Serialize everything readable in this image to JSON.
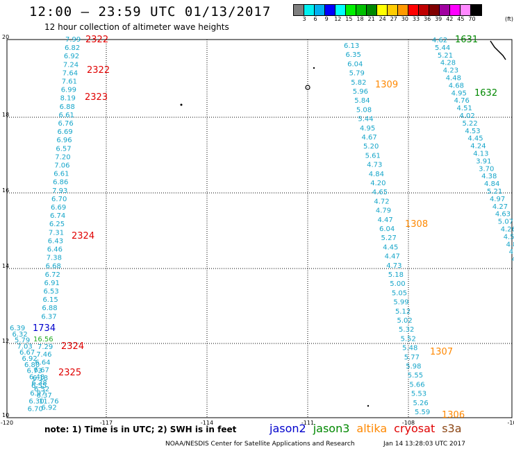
{
  "header": {
    "title": "12:00 — 23:59 UTC 01/13/2017",
    "subtitle": "12 hour collection of altimeter wave heights"
  },
  "colorbar": {
    "colors": [
      "#7f7f7f",
      "#00f0f0",
      "#00b0f0",
      "#0000ff",
      "#00ffff",
      "#00f000",
      "#00c000",
      "#008800",
      "#ffff00",
      "#ffcc00",
      "#ff9900",
      "#ff0000",
      "#c00000",
      "#800000",
      "#a000a0",
      "#ff00ff",
      "#ff88ff",
      "#000000"
    ],
    "labels": [
      "3",
      "6",
      "9",
      "12",
      "15",
      "18",
      "21",
      "24",
      "27",
      "30",
      "33",
      "36",
      "39",
      "42",
      "45",
      "70"
    ],
    "unit": "(ft)"
  },
  "map_axes": {
    "lon_ticks": [
      "-120",
      "-117",
      "-114",
      "-111",
      "-108",
      "-10"
    ],
    "lat_ticks": [
      "20",
      "18",
      "16",
      "14",
      "12",
      "10"
    ],
    "grid": true
  },
  "passes": [
    {
      "id": "2322",
      "mission": "cryosat",
      "color": "#e00000",
      "labels": [
        {
          "text": "2322"
        },
        {
          "text": "2322"
        }
      ]
    },
    {
      "id": "2323",
      "mission": "cryosat",
      "color": "#e00000",
      "labels": [
        {
          "text": "2323"
        }
      ]
    },
    {
      "id": "2324",
      "mission": "cryosat",
      "color": "#e00000",
      "labels": [
        {
          "text": "2324"
        },
        {
          "text": "2324"
        }
      ]
    },
    {
      "id": "2325",
      "mission": "cryosat",
      "color": "#e00000",
      "labels": [
        {
          "text": "2325"
        }
      ]
    },
    {
      "id": "1734",
      "mission": "jason2",
      "color": "#0000cc",
      "labels": [
        {
          "text": "1734"
        }
      ]
    },
    {
      "id": "1309",
      "mission": "altika",
      "color": "#ff8800",
      "labels": [
        {
          "text": "1309"
        }
      ]
    },
    {
      "id": "1308",
      "mission": "altika",
      "color": "#ff8800",
      "labels": [
        {
          "text": "1308"
        }
      ]
    },
    {
      "id": "1307",
      "mission": "altika",
      "color": "#ff8800",
      "labels": [
        {
          "text": "1307"
        }
      ]
    },
    {
      "id": "1306",
      "mission": "altika",
      "color": "#ff8800",
      "labels": [
        {
          "text": "1306"
        }
      ]
    },
    {
      "id": "1631",
      "mission": "jason3",
      "color": "#008800",
      "labels": [
        {
          "text": "1631"
        }
      ]
    },
    {
      "id": "1632",
      "mission": "jason3",
      "color": "#008800",
      "labels": [
        {
          "text": "1632"
        }
      ]
    }
  ],
  "tracks": {
    "west_track": [
      "7.99",
      "6.82",
      "6.92",
      "7.24",
      "7.64",
      "7.61",
      "6.99",
      "8.19",
      "6.88",
      "6.61",
      "6.76",
      "6.69",
      "6.96",
      "6.57",
      "7.20",
      "7.06",
      "6.61",
      "6.86",
      "7.93",
      "6.70",
      "6.69",
      "6.74",
      "6.25",
      "7.31",
      "6.43",
      "6.46",
      "7.38",
      "6.68",
      "6.72",
      "6.91",
      "6.53",
      "6.15",
      "6.88",
      "6.37"
    ],
    "west_lower": [
      "6.39",
      "6.32",
      "5.79",
      "7.03",
      "6.67",
      "6.92",
      "6.80",
      "6.73",
      "6.48",
      "6.38",
      "6.52",
      "6.37",
      "11.76",
      "6.92"
    ],
    "west_lower_b": [
      "7.29",
      "7.46",
      "6.64",
      "6.67",
      "6.18",
      "6.55",
      "6.97",
      "6.30",
      "6.70"
    ],
    "west_green": [
      "16.56"
    ],
    "mid_track": [
      "6.13",
      "6.35",
      "6.04",
      "5.79",
      "5.82",
      "5.96",
      "5.84",
      "5.08",
      "5.44",
      "4.95",
      "4.67",
      "5.20",
      "5.61",
      "4.73",
      "4.84",
      "4.20",
      "4.65",
      "4.72",
      "4.79",
      "4.47",
      "6.04",
      "5.27",
      "4.45",
      "4.47",
      "4.73",
      "5.18",
      "5.00",
      "5.05",
      "5.99",
      "5.12",
      "5.02",
      "5.32",
      "5.52",
      "5.48",
      "5.77",
      "5.98",
      "5.55",
      "5.66",
      "5.53",
      "5.26",
      "5.59"
    ],
    "east_track": [
      "4.62",
      "5.44",
      "5.21",
      "4.28",
      "4.23",
      "4.48",
      "4.68",
      "4.95",
      "4.76",
      "4.51",
      "4.02",
      "5.22",
      "4.53",
      "4.45",
      "4.24",
      "4.13",
      "3.91",
      "3.70",
      "4.38",
      "4.84",
      "5.21",
      "4.97",
      "4.27",
      "4.63",
      "5.07",
      "4.26",
      "4.5",
      "4.8",
      "4",
      "4"
    ]
  },
  "footer": {
    "note": "note:  1) Time is in UTC;  2) SWH is in feet",
    "legend": [
      {
        "name": "jason2",
        "color": "#0000cc"
      },
      {
        "name": "jason3",
        "color": "#008800"
      },
      {
        "name": "altika",
        "color": "#ff8800"
      },
      {
        "name": "cryosat",
        "color": "#e00000"
      },
      {
        "name": "s3a",
        "color": "#8b4513"
      }
    ],
    "credit": "NOAA/NESDIS Center for Satellite Applications and Research",
    "timestamp": "Jan 14 13:28:03 UTC 2017"
  }
}
